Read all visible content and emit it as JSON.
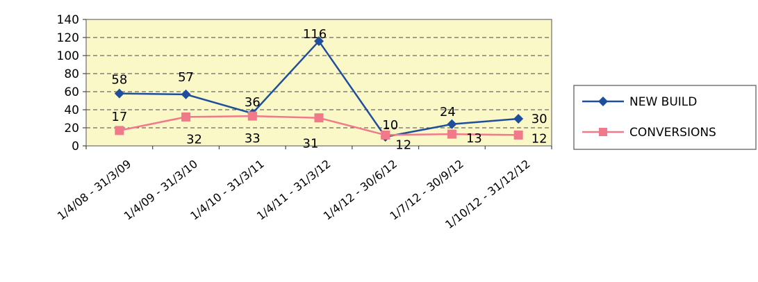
{
  "chart_data": {
    "type": "line",
    "categories": [
      "1/4/08 - 31/3/09",
      "1/4/09 - 31/3/10",
      "1/4/10 - 31/3/11",
      "1/4/11 - 31/3/12",
      "1/4/12 - 30/6/12",
      "1/7/12 - 30/9/12",
      "1/10/12 - 31/12/12"
    ],
    "series": [
      {
        "name": "NEW BUILD",
        "values": [
          58,
          57,
          36,
          116,
          10,
          24,
          30
        ],
        "color": "#1f4e9c",
        "marker": "diamond"
      },
      {
        "name": "CONVERSIONS",
        "values": [
          17,
          32,
          33,
          31,
          12,
          13,
          12
        ],
        "color": "#f07a8a",
        "marker": "square"
      }
    ],
    "ylim": [
      0,
      140
    ],
    "yticks": [
      0,
      20,
      40,
      60,
      80,
      100,
      120,
      140
    ],
    "grid": true,
    "plot_background": "#fbf8c8",
    "legend_position": "right"
  }
}
